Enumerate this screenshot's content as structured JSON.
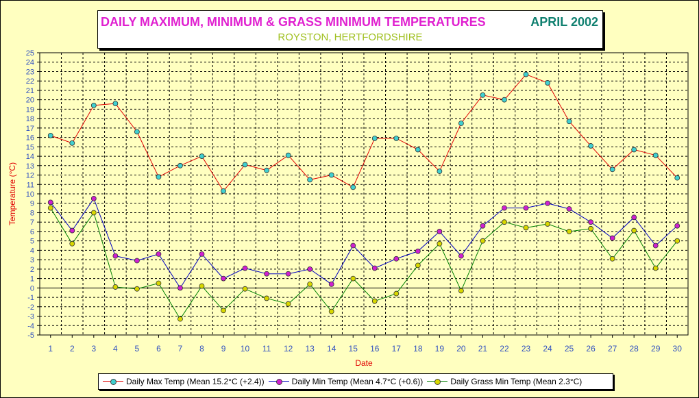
{
  "title": {
    "main": "DAILY MAXIMUM, MINIMUM & GRASS MINIMUM TEMPERATURES",
    "period": "APRIL 2002",
    "location": "ROYSTON, HERTFORDSHIRE"
  },
  "colors": {
    "background": "#ffffc0",
    "max_line": "#e00000",
    "max_marker": "#40d0d0",
    "min_line": "#0000c0",
    "min_marker": "#d020d0",
    "grass_line": "#008000",
    "grass_marker": "#d8d800",
    "axis_label": "#e00000",
    "tick_label": "#3050c0"
  },
  "chart_data": {
    "type": "line",
    "xlabel": "Date",
    "ylabel": "Temperature (°C)",
    "ylim": [
      -5,
      25
    ],
    "grid": true,
    "legend_position": "bottom",
    "categories": [
      "1",
      "2",
      "3",
      "4",
      "5",
      "6",
      "7",
      "8",
      "9",
      "10",
      "11",
      "12",
      "13",
      "14",
      "15",
      "16",
      "17",
      "18",
      "19",
      "20",
      "21",
      "22",
      "23",
      "24",
      "25",
      "26",
      "27",
      "28",
      "29",
      "30"
    ],
    "y_ticks": [
      "25",
      "24",
      "23",
      "22",
      "21",
      "20",
      "19",
      "18",
      "17",
      "16",
      "15",
      "14",
      "13",
      "12",
      "11",
      "10",
      "9",
      "8",
      "7",
      "6",
      "5",
      "4",
      "3",
      "2",
      "1",
      "0",
      "-1",
      "-2",
      "-3",
      "-4",
      "-5"
    ],
    "series": [
      {
        "name": "Daily Max Temp (Mean 15.2°C (+2.4))",
        "color_key": "max",
        "values": [
          16.2,
          15.4,
          19.4,
          19.6,
          16.6,
          11.8,
          13.0,
          14.0,
          10.3,
          13.1,
          12.5,
          14.1,
          11.5,
          12.0,
          10.7,
          15.9,
          15.9,
          14.7,
          12.4,
          17.5,
          20.5,
          20.0,
          22.7,
          21.8,
          17.7,
          15.1,
          12.6,
          14.7,
          14.1,
          11.7
        ]
      },
      {
        "name": "Daily Min Temp (Mean 4.7°C (+0.6))",
        "color_key": "min",
        "values": [
          9.1,
          6.1,
          9.5,
          3.4,
          2.9,
          3.6,
          0.0,
          3.6,
          1.0,
          2.1,
          1.5,
          1.5,
          2.0,
          0.4,
          4.5,
          2.1,
          3.1,
          3.9,
          6.0,
          3.4,
          6.6,
          8.5,
          8.5,
          9.0,
          8.4,
          7.0,
          5.3,
          7.5,
          4.5,
          6.6
        ]
      },
      {
        "name": "Daily Grass Min Temp (Mean 2.3°C)",
        "color_key": "grass",
        "values": [
          8.5,
          4.7,
          8.0,
          0.1,
          -0.1,
          0.5,
          -3.3,
          0.2,
          -2.4,
          -0.1,
          -1.1,
          -1.7,
          0.4,
          -2.5,
          1.0,
          -1.4,
          -0.6,
          2.4,
          4.7,
          -0.3,
          5.0,
          7.0,
          6.4,
          6.8,
          6.0,
          6.3,
          3.1,
          6.1,
          2.1,
          5.0
        ]
      }
    ]
  }
}
